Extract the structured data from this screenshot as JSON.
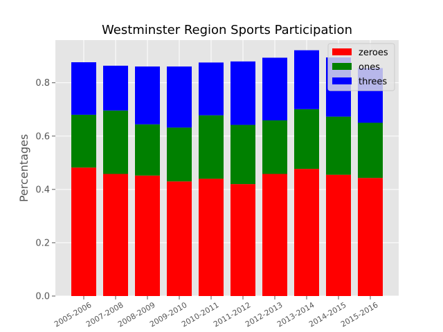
{
  "chart_data": {
    "type": "bar",
    "stacked": true,
    "title": "Westminster Region Sports Participation",
    "xlabel": "",
    "ylabel": "Percentages",
    "ylim": [
      0,
      0.96
    ],
    "yticks": [
      "0.0",
      "0.2",
      "0.4",
      "0.6",
      "0.8"
    ],
    "ytick_values": [
      0,
      0.2,
      0.4,
      0.6,
      0.8
    ],
    "grid": true,
    "legend_position": "top-right",
    "categories": [
      "2005-2006",
      "2007-2008",
      "2008-2009",
      "2009-2010",
      "2010-2011",
      "2011-2012",
      "2012-2013",
      "2013-2014",
      "2014-2015",
      "2015-2016"
    ],
    "series": [
      {
        "name": "zeroes",
        "color": "#ff0000",
        "values": [
          0.482,
          0.458,
          0.452,
          0.43,
          0.44,
          0.42,
          0.458,
          0.477,
          0.455,
          0.443
        ]
      },
      {
        "name": "ones",
        "color": "#008000",
        "values": [
          0.198,
          0.238,
          0.192,
          0.202,
          0.238,
          0.222,
          0.201,
          0.224,
          0.218,
          0.207
        ]
      },
      {
        "name": "threes",
        "color": "#0000ff",
        "values": [
          0.197,
          0.168,
          0.217,
          0.229,
          0.198,
          0.238,
          0.235,
          0.221,
          0.222,
          0.205
        ]
      }
    ]
  }
}
